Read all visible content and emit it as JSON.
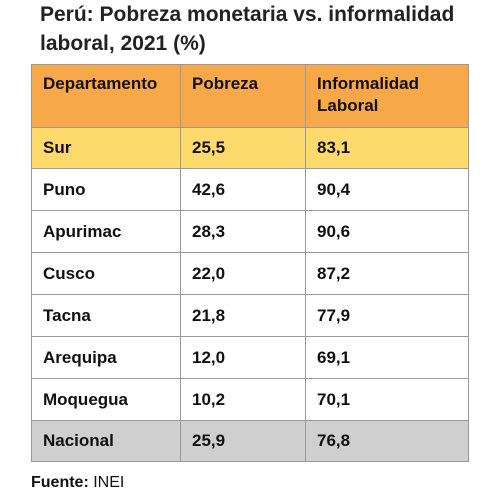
{
  "title": "Perú: Pobreza monetaria vs. informalidad laboral, 2021 (%)",
  "table": {
    "headers": [
      "Departamento",
      "Pobreza",
      "Informalidad Laboral"
    ],
    "rows": [
      [
        "Sur",
        "25,5",
        "83,1"
      ],
      [
        "Puno",
        "42,6",
        "90,4"
      ],
      [
        "Apurimac",
        "28,3",
        "90,6"
      ],
      [
        "Cusco",
        "22,0",
        "87,2"
      ],
      [
        "Tacna",
        "21,8",
        "77,9"
      ],
      [
        "Arequipa",
        "12,0",
        "69,1"
      ],
      [
        "Moquegua",
        "10,2",
        "70,1"
      ],
      [
        "Nacional",
        "25,9",
        "76,8"
      ]
    ]
  },
  "source": {
    "label": "Fuente:",
    "value": "INEI"
  },
  "colors": {
    "header_bg": "#f7a848",
    "highlight_bg": "#fed96b",
    "total_bg": "#cfcfcf"
  }
}
